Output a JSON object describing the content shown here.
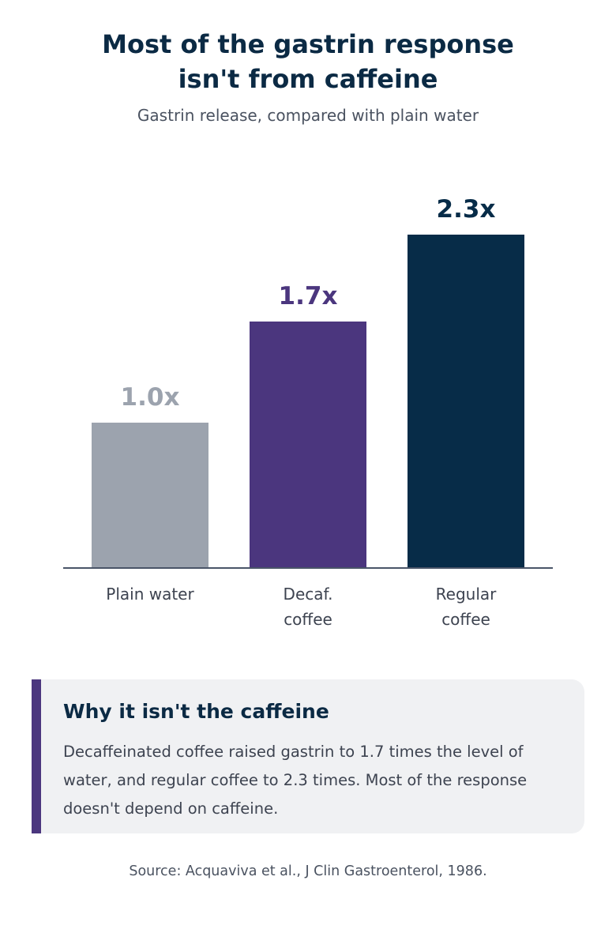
{
  "chart_data": {
    "type": "bar",
    "title": "Most of the gastrin response isn't from caffeine",
    "subtitle": "Gastrin release, compared with plain water",
    "categories": [
      "Plain water",
      "Decaf. coffee",
      "Regular coffee"
    ],
    "values": [
      1.0,
      1.7,
      2.3
    ],
    "value_labels": [
      "1.0x",
      "1.7x",
      "2.3x"
    ],
    "colors": [
      "#9ca3ae",
      "#4b367e",
      "#072c48"
    ]
  },
  "callout": {
    "title": "Why it isn't the caffeine",
    "text": "Decaffeinated coffee raised gastrin to 1.7 times the level of water, and regular coffee to 2.3 times. Most of the response doesn't depend on caffeine."
  },
  "source": "Source: Acquaviva et al., J Clin Gastroenterol, 1986."
}
